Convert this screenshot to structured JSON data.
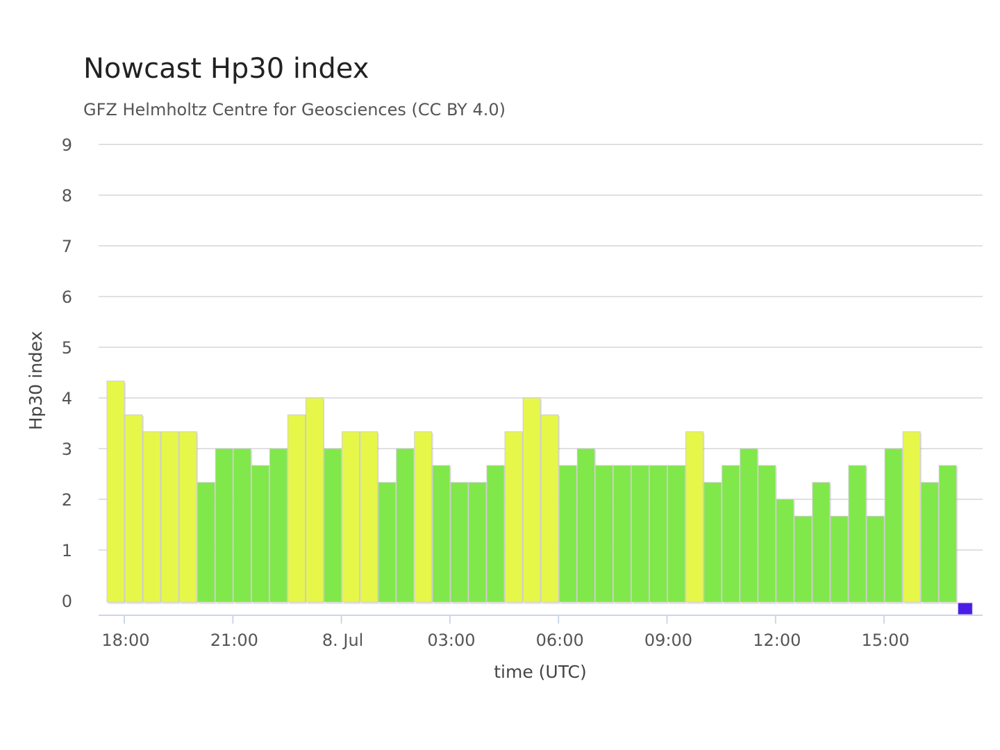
{
  "chart_data": {
    "type": "bar",
    "title": "Nowcast Hp30 index",
    "subtitle": "GFZ Helmholtz Centre for Geosciences (CC BY 4.0)",
    "xlabel": "time (UTC)",
    "ylabel": "Hp30 index",
    "ylim": [
      0,
      9
    ],
    "yticks": [
      "0",
      "1",
      "2",
      "3",
      "4",
      "5",
      "6",
      "7",
      "8",
      "9"
    ],
    "xticks": [
      "18:00",
      "21:00",
      "8. Jul",
      "03:00",
      "06:00",
      "09:00",
      "12:00",
      "15:00"
    ],
    "grid": true,
    "colors": {
      "green": "#80e84a",
      "yellow": "#e6f74a",
      "current": "#4a1ee6",
      "grid": "#e0e0e0",
      "axis": "#ccd6eb"
    },
    "x_start": "7 Jul 17:30",
    "interval_minutes": 30,
    "values": [
      4.333,
      3.667,
      3.333,
      3.333,
      3.333,
      2.333,
      3.0,
      3.0,
      2.667,
      3.0,
      3.667,
      4.0,
      3.0,
      3.333,
      3.333,
      2.333,
      3.0,
      3.333,
      2.667,
      2.333,
      2.333,
      2.667,
      3.333,
      4.0,
      3.667,
      2.667,
      3.0,
      2.667,
      2.667,
      2.667,
      2.667,
      2.667,
      3.333,
      2.333,
      2.667,
      3.0,
      2.667,
      2.0,
      1.667,
      2.333,
      1.667,
      2.667,
      1.667,
      3.0,
      3.333,
      2.333,
      2.667,
      0.0
    ]
  }
}
